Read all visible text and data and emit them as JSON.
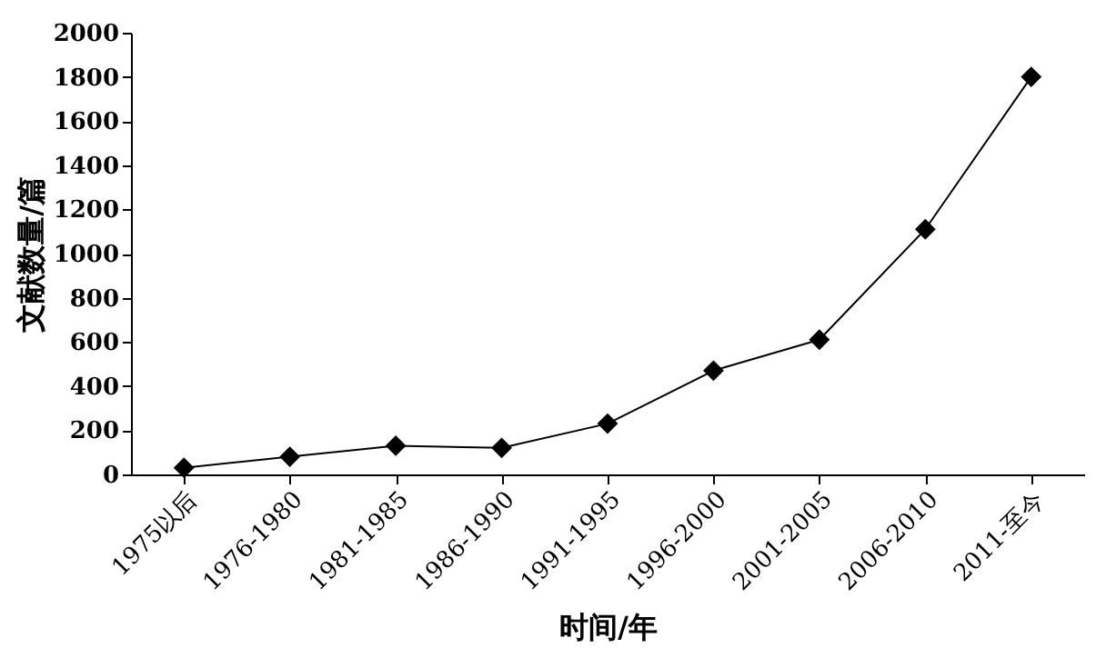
{
  "chart_data": {
    "type": "line",
    "xlabel": "时间/年",
    "ylabel": "文献数量/篇",
    "categories": [
      "1975以后",
      "1976-1980",
      "1981-1985",
      "1986-1990",
      "1991-1995",
      "1996-2000",
      "2001-2005",
      "2006-2010",
      "2011-至今"
    ],
    "series": [
      {
        "color": "#000000",
        "values": [
          30,
          80,
          130,
          120,
          230,
          470,
          610,
          1110,
          1800
        ]
      }
    ],
    "ylim": [
      0,
      2000
    ],
    "yticks": [
      0,
      200,
      400,
      600,
      800,
      1000,
      1200,
      1400,
      1600,
      1800,
      2000
    ],
    "grid": false,
    "marker": "diamond",
    "line_style": "solid"
  }
}
